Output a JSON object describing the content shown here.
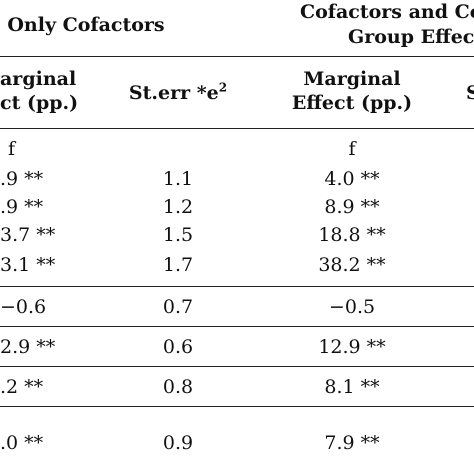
{
  "header": {
    "group1": "Only Cofactors",
    "group2_line1": "Cofactors and Co",
    "group2_line2": "Group Effec",
    "col1_line1": "arginal",
    "col1_line2": "ct (pp.)",
    "col2_label": "St.err *e",
    "col2_sup": "2",
    "col3_line1": "Marginal",
    "col3_line2": "Effect (pp.)",
    "col4_partial": "S"
  },
  "rows": [
    {
      "c1": "f",
      "c2": "",
      "c3": "f"
    },
    {
      "c1": ".9 **",
      "c2": "1.1",
      "c3": "4.0 **"
    },
    {
      "c1": ".9 **",
      "c2": "1.2",
      "c3": "8.9 **"
    },
    {
      "c1": "3.7 **",
      "c2": "1.5",
      "c3": "18.8 **"
    },
    {
      "c1": "3.1 **",
      "c2": "1.7",
      "c3": "38.2 **"
    },
    {
      "c1": "−0.6",
      "c2": "0.7",
      "c3": "−0.5"
    },
    {
      "c1": "2.9 **",
      "c2": "0.6",
      "c3": "12.9 **"
    },
    {
      "c1": ".2 **",
      "c2": "0.8",
      "c3": "8.1 **"
    },
    {
      "c1": ".0 **",
      "c2": "0.9",
      "c3": "7.9 **"
    }
  ]
}
